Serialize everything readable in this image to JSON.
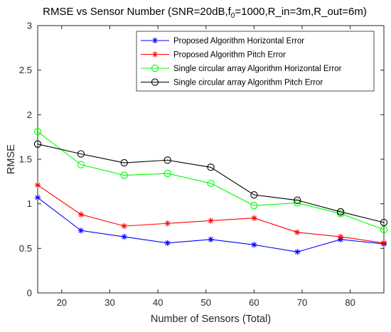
{
  "chart_data": {
    "type": "line",
    "title": {
      "main": "RMSE vs Sensor Number (SNR=20dB,f",
      "sub": "0",
      "rest": "=1000,R_in=3m,R_out=6m)"
    },
    "xlabel": "Number of Sensors (Total)",
    "ylabel": "RMSE",
    "xlim": [
      15,
      87
    ],
    "ylim": [
      0,
      3
    ],
    "xticks": [
      20,
      30,
      40,
      50,
      60,
      70,
      80
    ],
    "yticks": [
      0,
      0.5,
      1,
      1.5,
      2,
      2.5,
      3
    ],
    "ytick_labels": [
      "0",
      "0.5",
      "1",
      "1.5",
      "2",
      "2.5",
      "3"
    ],
    "grid": false,
    "legend_position": "top-right",
    "x": [
      15,
      24,
      33,
      42,
      51,
      60,
      69,
      78,
      87
    ],
    "series": [
      {
        "name": "Proposed Algorithm Horizontal Error",
        "color": "#0000ff",
        "marker": "asterisk",
        "values": [
          1.07,
          0.7,
          0.63,
          0.56,
          0.6,
          0.54,
          0.46,
          0.6,
          0.55
        ]
      },
      {
        "name": "Proposed Algorithm Pitch Error",
        "color": "#ff0000",
        "marker": "asterisk",
        "values": [
          1.21,
          0.88,
          0.75,
          0.78,
          0.81,
          0.84,
          0.68,
          0.63,
          0.56
        ]
      },
      {
        "name": "Single circular array Algorithm Horizontal Error",
        "color": "#00ff00",
        "marker": "circle",
        "values": [
          1.81,
          1.44,
          1.32,
          1.34,
          1.23,
          0.98,
          1.01,
          0.89,
          0.71
        ]
      },
      {
        "name": "Single circular array Algorithm Pitch Error",
        "color": "#000000",
        "marker": "circle",
        "values": [
          1.67,
          1.56,
          1.46,
          1.49,
          1.41,
          1.1,
          1.04,
          0.91,
          0.79
        ]
      }
    ]
  }
}
